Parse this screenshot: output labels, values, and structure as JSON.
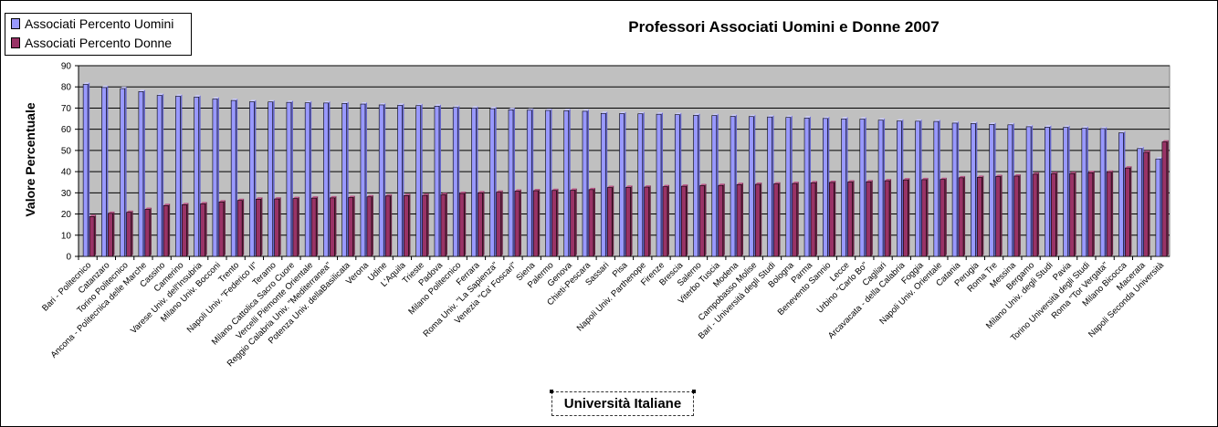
{
  "chart_data": {
    "type": "bar",
    "title": "Professori Associati Uomini e Donne 2007",
    "xlabel": "Università Italiane",
    "ylabel": "Valore Percentuale",
    "ylim": [
      0,
      90
    ],
    "yticks": [
      0,
      10,
      20,
      30,
      40,
      50,
      60,
      70,
      80,
      90
    ],
    "grid": true,
    "legend_position": "top-left",
    "colors": {
      "plot_background": "#c0c0c0",
      "uomini": "#9999ff",
      "donne": "#993366"
    },
    "categories": [
      "Bari - Politecnico",
      "Catanzaro",
      "Torino Politecnico",
      "Ancona - Politecnica delle Marche",
      "Cassino",
      "Camerino",
      "Varese Univ. dell'Insubria",
      "Milano Univ. Bocconi",
      "Trento",
      "Napoli Univ. \"Federico II\"",
      "Teramo",
      "Milano Cattolica Sacro Cuore",
      "Vercelli Piemonte Orientale",
      "Reggio Calabria Univ. \"Mediterranea\"",
      "Potenza Univ. dellaBasilicata",
      "Verona",
      "Udine",
      "L'Aquila",
      "Trieste",
      "Padova",
      "Milano Politecnico",
      "Ferrara",
      "Roma Univ. \"La Sapienza\"",
      "Venezia \"Ca' Foscari\"",
      "Siena",
      "Palermo",
      "Genova",
      "Chieti-Pescara",
      "Sassari",
      "Pisa",
      "Napoli Univ. Parthenope",
      "Firenze",
      "Brescia",
      "Salerno",
      "Viterbo Tuscia",
      "Modena",
      "Campobasso Molise",
      "Bari - Università degli Studi",
      "Bologna",
      "Parma",
      "Benevento Sannio",
      "Lecce",
      "Urbino \"Carlo Bo\"",
      "Cagliari",
      "Arcavacata - della Calabria",
      "Foggia",
      "Napoli Univ. Orientale",
      "Catania",
      "Perugia",
      "Roma Tre",
      "Messina",
      "Bergamo",
      "Milano Univ. degli Studi",
      "Pavia",
      "Torino Università degli Studi",
      "Roma \"Tor Vergata\"",
      "Milano Bicocca",
      "Macerata",
      "Napoli Seconda Università"
    ],
    "series": [
      {
        "name": "Associati Percento Uomini",
        "values": [
          81.2,
          79.7,
          79.2,
          77.8,
          76.0,
          75.6,
          75.2,
          74.3,
          73.6,
          73.0,
          72.9,
          72.7,
          72.5,
          72.4,
          72.2,
          71.9,
          71.5,
          71.3,
          71.2,
          70.9,
          70.3,
          70.0,
          69.7,
          69.2,
          69.0,
          68.9,
          68.8,
          68.5,
          67.5,
          67.4,
          67.3,
          67.1,
          66.9,
          66.6,
          66.5,
          66.1,
          66.0,
          65.8,
          65.6,
          65.3,
          65.1,
          64.9,
          64.8,
          64.3,
          63.9,
          63.8,
          63.7,
          62.9,
          62.7,
          62.3,
          62.1,
          61.2,
          61.0,
          60.9,
          60.5,
          60.3,
          58.3,
          50.9,
          46.0
        ]
      },
      {
        "name": "Associati Percento Donne",
        "values": [
          18.8,
          20.3,
          20.8,
          22.2,
          24.0,
          24.4,
          24.8,
          25.7,
          26.4,
          27.0,
          27.1,
          27.3,
          27.5,
          27.6,
          27.8,
          28.1,
          28.5,
          28.7,
          28.8,
          29.1,
          29.7,
          30.0,
          30.3,
          30.8,
          31.0,
          31.1,
          31.2,
          31.5,
          32.5,
          32.6,
          32.7,
          32.9,
          33.1,
          33.4,
          33.5,
          33.9,
          34.0,
          34.2,
          34.4,
          34.7,
          34.9,
          35.1,
          35.2,
          35.7,
          36.1,
          36.2,
          36.3,
          37.1,
          37.3,
          37.7,
          37.9,
          38.8,
          39.0,
          39.1,
          39.5,
          39.7,
          41.7,
          49.1,
          54.0
        ]
      }
    ]
  }
}
